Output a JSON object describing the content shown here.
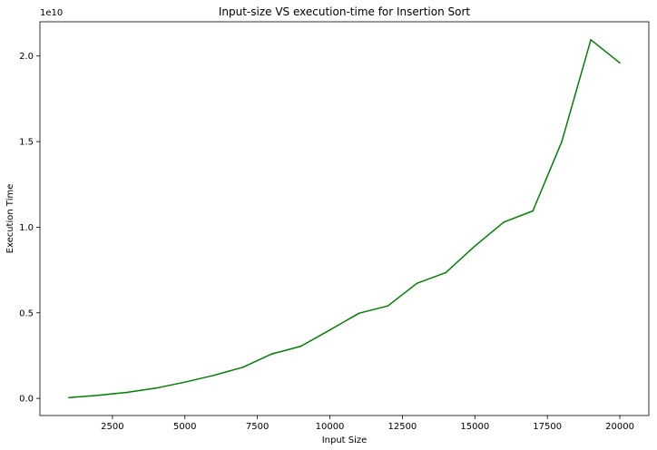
{
  "chart_data": {
    "type": "line",
    "title": "Input-size VS execution-time for Insertion Sort",
    "xlabel": "Input Size",
    "ylabel": "Execution Time",
    "y_offset_label": "1e10",
    "xlim": [
      0,
      21000
    ],
    "ylim": [
      -0.1,
      2.2
    ],
    "x_ticks": [
      2500,
      5000,
      7500,
      10000,
      12500,
      15000,
      17500,
      20000
    ],
    "x_tick_labels": [
      "2500",
      "5000",
      "7500",
      "10000",
      "12500",
      "15000",
      "17500",
      "20000"
    ],
    "y_ticks": [
      0.0,
      0.5,
      1.0,
      1.5,
      2.0
    ],
    "y_tick_labels": [
      "0.0",
      "0.5",
      "1.0",
      "1.5",
      "2.0"
    ],
    "grid": false,
    "series": [
      {
        "color": "#008000",
        "x": [
          1000,
          2000,
          3000,
          4000,
          5000,
          6000,
          7000,
          8000,
          9000,
          10000,
          11000,
          12000,
          13000,
          14000,
          15000,
          16000,
          17000,
          18000,
          19000,
          20000
        ],
        "y": [
          0.005,
          0.018,
          0.035,
          0.06,
          0.095,
          0.135,
          0.182,
          0.26,
          0.305,
          0.4,
          0.497,
          0.54,
          0.672,
          0.735,
          0.89,
          1.03,
          1.095,
          1.5,
          2.095,
          1.96
        ]
      }
    ]
  }
}
